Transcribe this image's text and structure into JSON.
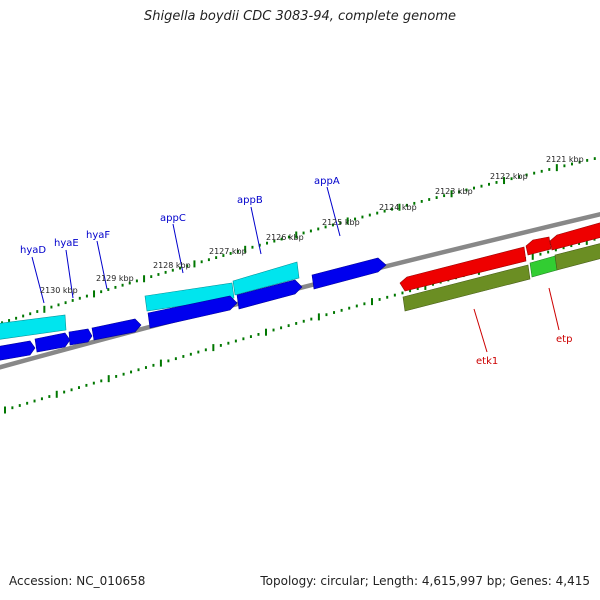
{
  "title": "Shigella boydii CDC 3083-94, complete genome",
  "footer": {
    "accession": "Accession: NC_010658",
    "summary": "Topology: circular; Length: 4,615,997 bp; Genes: 4,415"
  },
  "colors": {
    "forward_cds": "#00e5ee",
    "reverse_cds": "#0000ee",
    "red_cds": "#ee0000",
    "olive_cds": "#6b8e23",
    "green_cds": "#32cd32",
    "backbone": "#888888",
    "tick": "#007700",
    "blue_label": "#0000cc",
    "red_label": "#cc0000"
  },
  "scale_labels": [
    "2121 kbp",
    "2122 kbp",
    "2123 kbp",
    "2124 kbp",
    "2125 kbp",
    "2126 kbp",
    "2127 kbp",
    "2128 kbp",
    "2129 kbp",
    "2130 kbp"
  ],
  "gene_labels": [
    {
      "name": "hyaD",
      "color": "blue"
    },
    {
      "name": "hyaE",
      "color": "blue"
    },
    {
      "name": "hyaF",
      "color": "blue"
    },
    {
      "name": "appC",
      "color": "blue"
    },
    {
      "name": "appB",
      "color": "blue"
    },
    {
      "name": "appA",
      "color": "blue"
    },
    {
      "name": "etk1",
      "color": "red"
    },
    {
      "name": "etp",
      "color": "red"
    }
  ]
}
